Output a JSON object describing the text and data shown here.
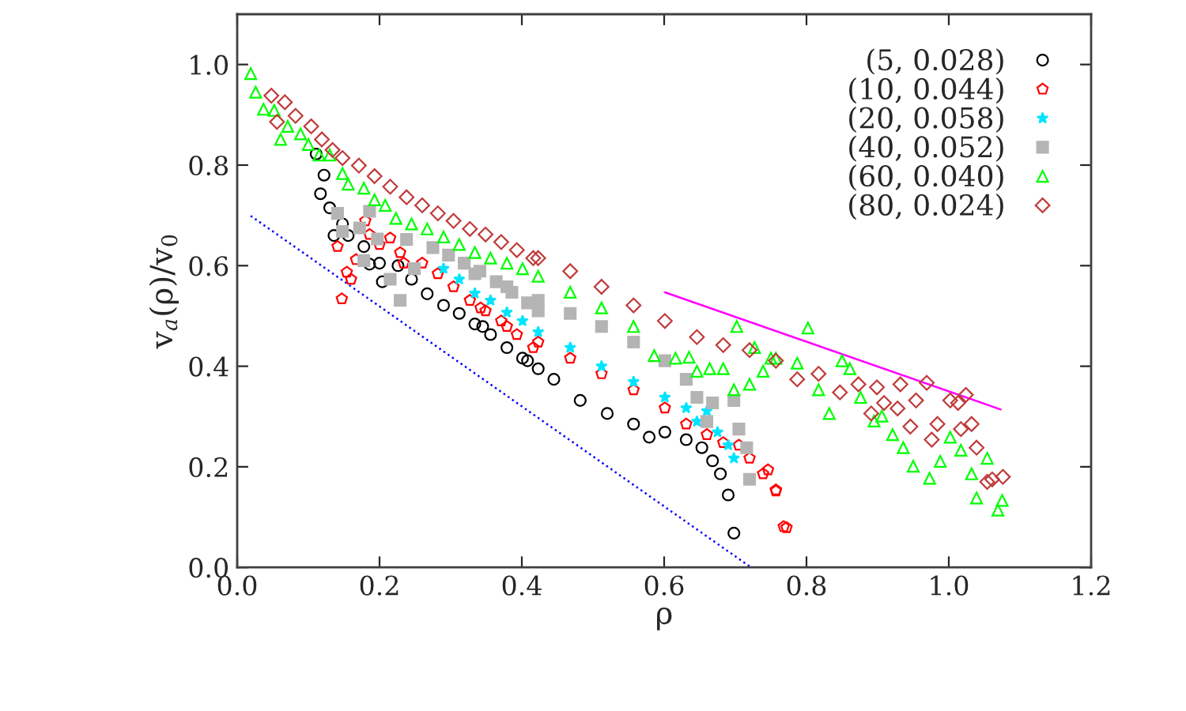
{
  "chart_data": {
    "type": "scatter",
    "xlabel": "ρ",
    "ylabel": "v$_{a}$(ρ)/v$_{0}$",
    "xlim": [
      0,
      1.2
    ],
    "ylim": [
      0,
      1.1
    ],
    "xticks": [
      {
        "value": 0,
        "label": "0.0"
      },
      {
        "value": 0.2,
        "label": "0.2"
      },
      {
        "value": 0.4,
        "label": "0.4"
      },
      {
        "value": 0.6,
        "label": "0.6"
      },
      {
        "value": 0.8,
        "label": "0.8"
      },
      {
        "value": 1.0,
        "label": "1.0"
      },
      {
        "value": 1.2,
        "label": "1.2"
      }
    ],
    "yticks": [
      {
        "value": 0,
        "label": "0.0"
      },
      {
        "value": 0.2,
        "label": "0.2"
      },
      {
        "value": 0.4,
        "label": "0.4"
      },
      {
        "value": 0.6,
        "label": "0.6"
      },
      {
        "value": 0.8,
        "label": "0.8"
      },
      {
        "value": 1.0,
        "label": "1.0"
      }
    ],
    "grid": false,
    "legend": "top right",
    "series": [
      {
        "name": "(5, 0.028)",
        "color": "#000000",
        "marker": "circle",
        "x": [
          0.111,
          0.122,
          0.117,
          0.13,
          0.148,
          0.136,
          0.156,
          0.178,
          0.186,
          0.2,
          0.204,
          0.226,
          0.245,
          0.267,
          0.29,
          0.312,
          0.334,
          0.345,
          0.356,
          0.379,
          0.401,
          0.408,
          0.423,
          0.445,
          0.482,
          0.52,
          0.557,
          0.579,
          0.601,
          0.631,
          0.653,
          0.668,
          0.679,
          0.69,
          0.698
        ],
        "values": [
          0.822,
          0.78,
          0.743,
          0.715,
          0.683,
          0.66,
          0.66,
          0.638,
          0.603,
          0.605,
          0.568,
          0.6,
          0.573,
          0.544,
          0.521,
          0.505,
          0.484,
          0.479,
          0.463,
          0.437,
          0.416,
          0.411,
          0.395,
          0.374,
          0.332,
          0.306,
          0.285,
          0.259,
          0.269,
          0.254,
          0.238,
          0.212,
          0.186,
          0.144,
          0.068
        ]
      },
      {
        "name": "(10, 0.044)",
        "color": "#ff0000",
        "x": [
          0.147,
          0.154,
          0.16,
          0.141,
          0.167,
          0.18,
          0.186,
          0.2,
          0.215,
          0.229,
          0.234,
          0.26,
          0.282,
          0.304,
          0.327,
          0.342,
          0.349,
          0.371,
          0.379,
          0.393,
          0.416,
          0.423,
          0.468,
          0.512,
          0.557,
          0.601,
          0.631,
          0.66,
          0.683,
          0.705,
          0.72,
          0.739,
          0.746,
          0.757,
          0.757,
          0.768,
          0.772
        ],
        "values": [
          0.534,
          0.587,
          0.573,
          0.638,
          0.612,
          0.689,
          0.662,
          0.642,
          0.655,
          0.626,
          0.605,
          0.605,
          0.584,
          0.558,
          0.531,
          0.516,
          0.51,
          0.49,
          0.479,
          0.463,
          0.437,
          0.448,
          0.416,
          0.385,
          0.353,
          0.317,
          0.285,
          0.264,
          0.248,
          0.243,
          0.217,
          0.186,
          0.194,
          0.154,
          0.152,
          0.081,
          0.079
        ]
      },
      {
        "name": "(20, 0.058)",
        "color": "#00e5ff",
        "marker": "star",
        "x": [
          0.29,
          0.312,
          0.334,
          0.356,
          0.379,
          0.401,
          0.423,
          0.468,
          0.512,
          0.557,
          0.601,
          0.631,
          0.646,
          0.66,
          0.675,
          0.69,
          0.698
        ],
        "values": [
          0.594,
          0.573,
          0.545,
          0.531,
          0.507,
          0.49,
          0.468,
          0.437,
          0.4,
          0.369,
          0.338,
          0.317,
          0.29,
          0.311,
          0.269,
          0.243,
          0.217
        ]
      },
      {
        "name": "(40, 0.052)",
        "color": "#b4b4b4",
        "marker": "square",
        "x": [
          0.141,
          0.172,
          0.148,
          0.186,
          0.197,
          0.178,
          0.215,
          0.229,
          0.238,
          0.249,
          0.275,
          0.297,
          0.319,
          0.334,
          0.341,
          0.364,
          0.379,
          0.386,
          0.408,
          0.423,
          0.423,
          0.468,
          0.512,
          0.557,
          0.601,
          0.631,
          0.646,
          0.668,
          0.698,
          0.66,
          0.705,
          0.716,
          0.72
        ],
        "values": [
          0.704,
          0.675,
          0.668,
          0.708,
          0.653,
          0.61,
          0.573,
          0.531,
          0.652,
          0.594,
          0.636,
          0.621,
          0.605,
          0.584,
          0.589,
          0.568,
          0.558,
          0.547,
          0.526,
          0.51,
          0.531,
          0.505,
          0.479,
          0.448,
          0.411,
          0.374,
          0.338,
          0.327,
          0.332,
          0.29,
          0.275,
          0.238,
          0.175
        ]
      },
      {
        "name": "(60, 0.040)",
        "color": "#00ff00",
        "marker": "triangle",
        "x": [
          0.019,
          0.026,
          0.037,
          0.052,
          0.061,
          0.071,
          0.089,
          0.1,
          0.115,
          0.13,
          0.148,
          0.156,
          0.178,
          0.193,
          0.208,
          0.223,
          0.245,
          0.267,
          0.29,
          0.312,
          0.334,
          0.356,
          0.379,
          0.401,
          0.423,
          0.468,
          0.512,
          0.557,
          0.586,
          0.616,
          0.635,
          0.646,
          0.664,
          0.683,
          0.702,
          0.698,
          0.72,
          0.739,
          0.75,
          0.727,
          0.757,
          0.787,
          0.802,
          0.817,
          0.832,
          0.85,
          0.861,
          0.876,
          0.895,
          0.906,
          0.921,
          0.936,
          0.95,
          0.973,
          0.988,
          1.002,
          1.017,
          1.032,
          1.039,
          1.054,
          1.069,
          1.075
        ],
        "values": [
          0.982,
          0.945,
          0.911,
          0.909,
          0.851,
          0.877,
          0.862,
          0.841,
          0.82,
          0.82,
          0.783,
          0.762,
          0.754,
          0.731,
          0.72,
          0.694,
          0.683,
          0.673,
          0.657,
          0.642,
          0.626,
          0.615,
          0.605,
          0.594,
          0.579,
          0.547,
          0.516,
          0.479,
          0.421,
          0.416,
          0.418,
          0.39,
          0.395,
          0.395,
          0.479,
          0.353,
          0.364,
          0.39,
          0.416,
          0.437,
          0.416,
          0.406,
          0.476,
          0.353,
          0.306,
          0.411,
          0.395,
          0.338,
          0.291,
          0.301,
          0.264,
          0.238,
          0.201,
          0.177,
          0.211,
          0.259,
          0.233,
          0.186,
          0.138,
          0.217,
          0.114,
          0.133
        ]
      },
      {
        "name": "(80, 0.024)",
        "color": "#c03c3c",
        "marker": "diamond",
        "x": [
          0.048,
          0.056,
          0.067,
          0.082,
          0.104,
          0.119,
          0.134,
          0.148,
          0.171,
          0.193,
          0.215,
          0.238,
          0.26,
          0.282,
          0.304,
          0.327,
          0.349,
          0.371,
          0.393,
          0.416,
          0.423,
          0.468,
          0.512,
          0.557,
          0.601,
          0.646,
          0.683,
          0.72,
          0.757,
          0.787,
          0.817,
          0.847,
          0.873,
          0.899,
          0.891,
          0.909,
          0.932,
          0.928,
          0.954,
          0.946,
          0.969,
          0.976,
          0.984,
          1.002,
          1.013,
          1.024,
          1.017,
          1.032,
          1.039,
          1.054,
          1.061,
          1.076
        ],
        "values": [
          0.938,
          0.886,
          0.925,
          0.898,
          0.877,
          0.851,
          0.83,
          0.814,
          0.799,
          0.778,
          0.757,
          0.736,
          0.72,
          0.704,
          0.689,
          0.673,
          0.662,
          0.647,
          0.631,
          0.615,
          0.615,
          0.589,
          0.558,
          0.521,
          0.49,
          0.458,
          0.442,
          0.432,
          0.411,
          0.374,
          0.385,
          0.348,
          0.364,
          0.358,
          0.306,
          0.327,
          0.364,
          0.316,
          0.332,
          0.28,
          0.367,
          0.254,
          0.285,
          0.332,
          0.327,
          0.343,
          0.275,
          0.285,
          0.238,
          0.17,
          0.175,
          0.18
        ]
      },
      {
        "type": "line",
        "color": "#ff00ff",
        "line_style": "solid",
        "x": [
          0.601,
          1.073
        ],
        "values": [
          0.547,
          0.314
        ]
      },
      {
        "type": "line",
        "color": "#0000ff",
        "line_style": "dotted",
        "x": [
          0.019,
          0.72
        ],
        "values": [
          0.699,
          0.002
        ]
      }
    ]
  }
}
